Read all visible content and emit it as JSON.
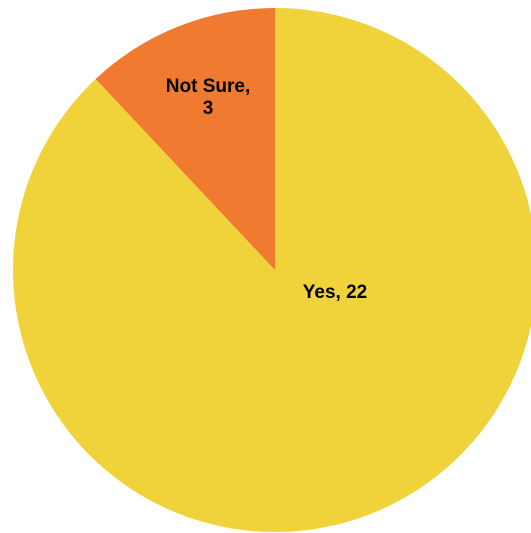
{
  "chart_data": {
    "type": "pie",
    "categories": [
      "Yes",
      "Not Sure"
    ],
    "values": [
      22,
      3
    ],
    "colors": [
      "#f0d23a",
      "#ef7a30"
    ],
    "data_labels": [
      {
        "lines": [
          "Yes, 22"
        ]
      },
      {
        "lines": [
          "Not Sure,",
          "3"
        ]
      }
    ],
    "start_angle": "12 o'clock",
    "direction": "clockwise"
  }
}
